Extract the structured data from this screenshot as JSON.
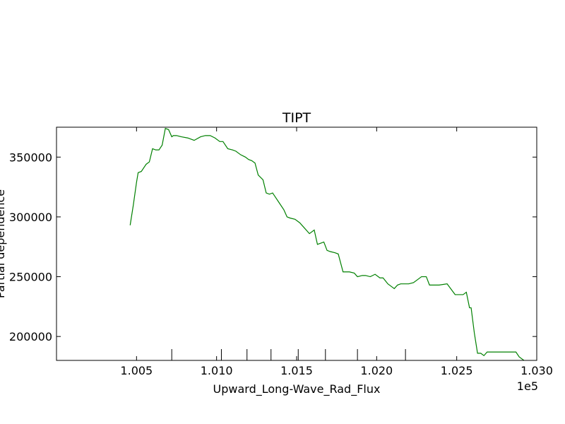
{
  "chart_data": {
    "type": "line",
    "title": "TIPT",
    "xlabel": "Upward_Long-Wave_Rad_Flux",
    "ylabel": "Partial dependence",
    "x_offset_label": "1e5",
    "xlim": [
      1.0,
      1.03
    ],
    "ylim": [
      180000,
      375000
    ],
    "x_ticks": [
      1.005,
      1.01,
      1.015,
      1.02,
      1.025,
      1.03
    ],
    "x_tick_labels": [
      "1.005",
      "1.010",
      "1.015",
      "1.020",
      "1.025",
      "1.030"
    ],
    "y_ticks": [
      200000,
      250000,
      300000,
      350000
    ],
    "y_tick_labels": [
      "200000",
      "250000",
      "300000",
      "350000"
    ],
    "rug_x": [
      1.0072,
      1.0103,
      1.0119,
      1.0134,
      1.0151,
      1.0168,
      1.0188,
      1.0218
    ],
    "grid": false,
    "series": [
      {
        "color": "#008000",
        "x": [
          1.0046,
          1.0048,
          1.005,
          1.0051,
          1.0053,
          1.0056,
          1.0058,
          1.006,
          1.0062,
          1.0064,
          1.0066,
          1.0068,
          1.007,
          1.0072,
          1.0073,
          1.0075,
          1.0078,
          1.0082,
          1.0086,
          1.009,
          1.0093,
          1.0096,
          1.0099,
          1.0102,
          1.0104,
          1.0107,
          1.011,
          1.0112,
          1.0115,
          1.0118,
          1.012,
          1.0122,
          1.0124,
          1.0126,
          1.0129,
          1.0131,
          1.0133,
          1.0135,
          1.0137,
          1.0139,
          1.0142,
          1.0144,
          1.0146,
          1.0149,
          1.0152,
          1.0154,
          1.0158,
          1.0161,
          1.0163,
          1.0165,
          1.0167,
          1.0169,
          1.0171,
          1.0174,
          1.0176,
          1.0179,
          1.0183,
          1.0186,
          1.0188,
          1.0191,
          1.0193,
          1.0196,
          1.0199,
          1.0202,
          1.0204,
          1.0207,
          1.0209,
          1.0211,
          1.0213,
          1.0215,
          1.0218,
          1.022,
          1.0223,
          1.0226,
          1.0228,
          1.0231,
          1.0233,
          1.0235,
          1.0237,
          1.0239,
          1.0244,
          1.0249,
          1.0251,
          1.0254,
          1.0256,
          1.0258,
          1.0259,
          1.0261,
          1.0263,
          1.0265,
          1.0267,
          1.0269,
          1.0271,
          1.0273,
          1.0276,
          1.0279,
          1.0283,
          1.0287,
          1.0289,
          1.0292,
          1.0294
        ],
        "values": [
          293000,
          310000,
          329000,
          337000,
          338000,
          344000,
          346000,
          357000,
          356000,
          356000,
          360000,
          374000,
          373000,
          367000,
          368000,
          368000,
          367000,
          366000,
          364000,
          367000,
          368000,
          368000,
          366000,
          363000,
          363000,
          357000,
          356000,
          355000,
          352000,
          350000,
          348000,
          347000,
          345000,
          335000,
          331000,
          320000,
          319000,
          320000,
          316000,
          312000,
          306000,
          300000,
          299000,
          298000,
          295000,
          292000,
          286000,
          289000,
          277000,
          278000,
          279000,
          272000,
          271000,
          270000,
          269000,
          254000,
          254000,
          253000,
          250000,
          251000,
          251000,
          250000,
          252000,
          249000,
          249000,
          244000,
          242000,
          240000,
          243000,
          244000,
          244000,
          244000,
          245000,
          248000,
          250000,
          250000,
          243000,
          243000,
          243000,
          243000,
          244000,
          235000,
          235000,
          235000,
          237000,
          224000,
          224000,
          203000,
          186000,
          186000,
          184000,
          187000,
          187000,
          187000,
          187000,
          187000,
          187000,
          187000,
          183000,
          180000,
          178000
        ]
      }
    ]
  }
}
